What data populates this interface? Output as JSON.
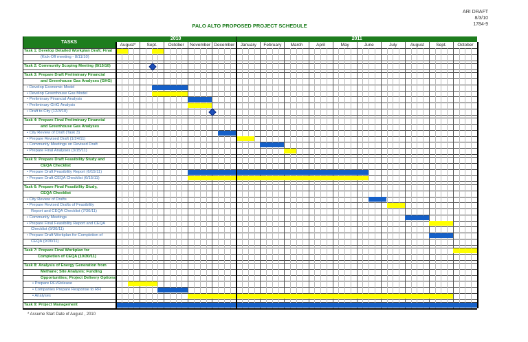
{
  "header_note": {
    "line1": "ARI DRAFT",
    "line2": "8/3/10",
    "line3": "1784-9"
  },
  "title": "PALO ALTO PROPOSED PROJECT SCHEDULE",
  "footnote": "* Assume Start Date of August , 2010",
  "colors": {
    "header_green": "#1e7d1e",
    "task_text": "#1a8a1a",
    "subtask_text": "#3a6fb0",
    "blue_bar": "#1560c8",
    "yellow_bar": "#ffff00"
  },
  "chart_data": {
    "type": "gantt",
    "tasks_header": "TASKS",
    "years": [
      {
        "label": "2010",
        "months": 5
      },
      {
        "label": "2011",
        "months": 10
      }
    ],
    "months": [
      "August*",
      "Sept.",
      "October",
      "November",
      "December",
      "January",
      "February",
      "March",
      "April",
      "May",
      "June",
      "July",
      "August",
      "Sept.",
      "October"
    ],
    "weeks_per_month": 4,
    "rows": [
      {
        "kind": "task",
        "text": "Task 1: Develop Detailed Workplan Draft; Final",
        "bars": [
          {
            "color": "yellow",
            "weeks": [
              0,
              1
            ]
          },
          {
            "color": "yellow",
            "weeks": [
              6,
              7
            ]
          }
        ]
      },
      {
        "kind": "cont",
        "text": "(Kick-Off meeting - 8/11/10)"
      },
      {
        "kind": "spacer"
      },
      {
        "kind": "task",
        "text": "Task 2: Community Scoping Meeting (9/15/10)",
        "milestone": 6
      },
      {
        "kind": "spacer"
      },
      {
        "kind": "task",
        "text": "Task 3: Prepare Draft Preliminary Financial"
      },
      {
        "kind": "taskcont",
        "text": "and Greenhouse Gas Analyses (GHG)"
      },
      {
        "kind": "sub",
        "text": "• Develop Economic Model",
        "bars": [
          {
            "color": "blue",
            "weeks": [
              6,
              11
            ]
          }
        ]
      },
      {
        "kind": "sub",
        "text": "• Develop Greenhouse Gas Model",
        "bars": [
          {
            "color": "yellow",
            "weeks": [
              6,
              11
            ]
          }
        ]
      },
      {
        "kind": "sub",
        "text": "• Preliminary Financial Analysis",
        "bars": [
          {
            "color": "blue",
            "weeks": [
              12,
              15
            ]
          }
        ]
      },
      {
        "kind": "sub",
        "text": "• Preliminary GHG Analysis",
        "bars": [
          {
            "color": "yellow",
            "weeks": [
              12,
              15
            ]
          }
        ]
      },
      {
        "kind": "sub",
        "text": "• Draft to City (12/3/10)",
        "milestone": 16
      },
      {
        "kind": "spacer"
      },
      {
        "kind": "task",
        "text": "Task 4: Prepare Final Preliminary Financial"
      },
      {
        "kind": "taskcont",
        "text": "and Greenhouse Gas Analyses"
      },
      {
        "kind": "sub",
        "text": "• City Review of Draft (Task 3)",
        "bars": [
          {
            "color": "blue",
            "weeks": [
              17,
              19
            ]
          }
        ]
      },
      {
        "kind": "sub",
        "text": "• Prepare Revised Draft (1/24/11)",
        "bars": [
          {
            "color": "yellow",
            "weeks": [
              20,
              22
            ]
          }
        ]
      },
      {
        "kind": "sub",
        "text": "• Community Meetings on Revised Draft",
        "bars": [
          {
            "color": "blue",
            "weeks": [
              24,
              27
            ]
          }
        ]
      },
      {
        "kind": "sub",
        "text": "• Prepare Final Analyses (3/15/11)",
        "bars": [
          {
            "color": "yellow",
            "weeks": [
              28,
              29
            ]
          }
        ]
      },
      {
        "kind": "spacer"
      },
      {
        "kind": "task",
        "text": "Task 5: Prepare Draft Feasibility Study and"
      },
      {
        "kind": "taskcont",
        "text": "CEQA Checklist"
      },
      {
        "kind": "sub",
        "text": "• Prepare Draft Feasibility Report (6/15/11)",
        "bars": [
          {
            "color": "blue",
            "weeks": [
              12,
              41
            ]
          }
        ]
      },
      {
        "kind": "sub",
        "text": "• Prepare Draft CEQA Checklist (6/15/11)",
        "bars": [
          {
            "color": "yellow",
            "weeks": [
              12,
              41
            ]
          }
        ]
      },
      {
        "kind": "spacer"
      },
      {
        "kind": "task",
        "text": "Task 6: Prepare Final Feasibility Study,"
      },
      {
        "kind": "taskcont",
        "text": "CEQA Checklist"
      },
      {
        "kind": "sub",
        "text": "• City Review of Drafts",
        "bars": [
          {
            "color": "blue",
            "weeks": [
              42,
              44
            ]
          }
        ]
      },
      {
        "kind": "sub",
        "text": "• Prepare Revised Drafts of Feasibility",
        "bars": [
          {
            "color": "yellow",
            "weeks": [
              45,
              47
            ]
          }
        ]
      },
      {
        "kind": "subcont",
        "text": "Report and CEQA Checklist (7/30/11)"
      },
      {
        "kind": "sub",
        "text": "• Community Meetings",
        "bars": [
          {
            "color": "blue",
            "weeks": [
              48,
              51
            ]
          }
        ]
      },
      {
        "kind": "sub",
        "text": "• Prepare Final Feasibility Report and CEQA",
        "bars": [
          {
            "color": "yellow",
            "weeks": [
              52,
              55
            ]
          }
        ]
      },
      {
        "kind": "subcont",
        "text": "Checklist (9/30/11)"
      },
      {
        "kind": "sub",
        "text": "• Prepare Draft Workplan for Completion of",
        "bars": [
          {
            "color": "blue",
            "weeks": [
              52,
              55
            ]
          }
        ]
      },
      {
        "kind": "subcont",
        "text": "CEQA (9/30/11)"
      },
      {
        "kind": "spacer"
      },
      {
        "kind": "task",
        "text": "Task 7: Prepare Final Workplan for",
        "bars": [
          {
            "color": "yellow",
            "weeks": [
              56,
              59
            ]
          }
        ]
      },
      {
        "kind": "taskcont",
        "text": "Completion of CEQA (10/30/11)"
      },
      {
        "kind": "spacer"
      },
      {
        "kind": "task",
        "text": "Task 8: Analysis of Energy Generation from"
      },
      {
        "kind": "taskcont",
        "text": "Methane; Site Analysis; Funding"
      },
      {
        "kind": "taskcont",
        "text": "Opportunities; Project Delivery Options;"
      },
      {
        "kind": "sub2",
        "text": "• Prepare RFI/Release",
        "bars": [
          {
            "color": "yellow",
            "weeks": [
              2,
              6
            ]
          }
        ]
      },
      {
        "kind": "sub2",
        "text": "• Companies Prepare Response to RFI",
        "bars": [
          {
            "color": "blue",
            "weeks": [
              7,
              11
            ]
          }
        ]
      },
      {
        "kind": "sub2",
        "text": "• Analyses",
        "bars": [
          {
            "color": "yellow",
            "weeks": [
              12,
              55
            ]
          }
        ]
      },
      {
        "kind": "spacer"
      },
      {
        "kind": "task",
        "text": "Task 9:  Project Management",
        "bars": [
          {
            "color": "blue",
            "weeks": [
              0,
              59
            ]
          }
        ]
      }
    ]
  }
}
